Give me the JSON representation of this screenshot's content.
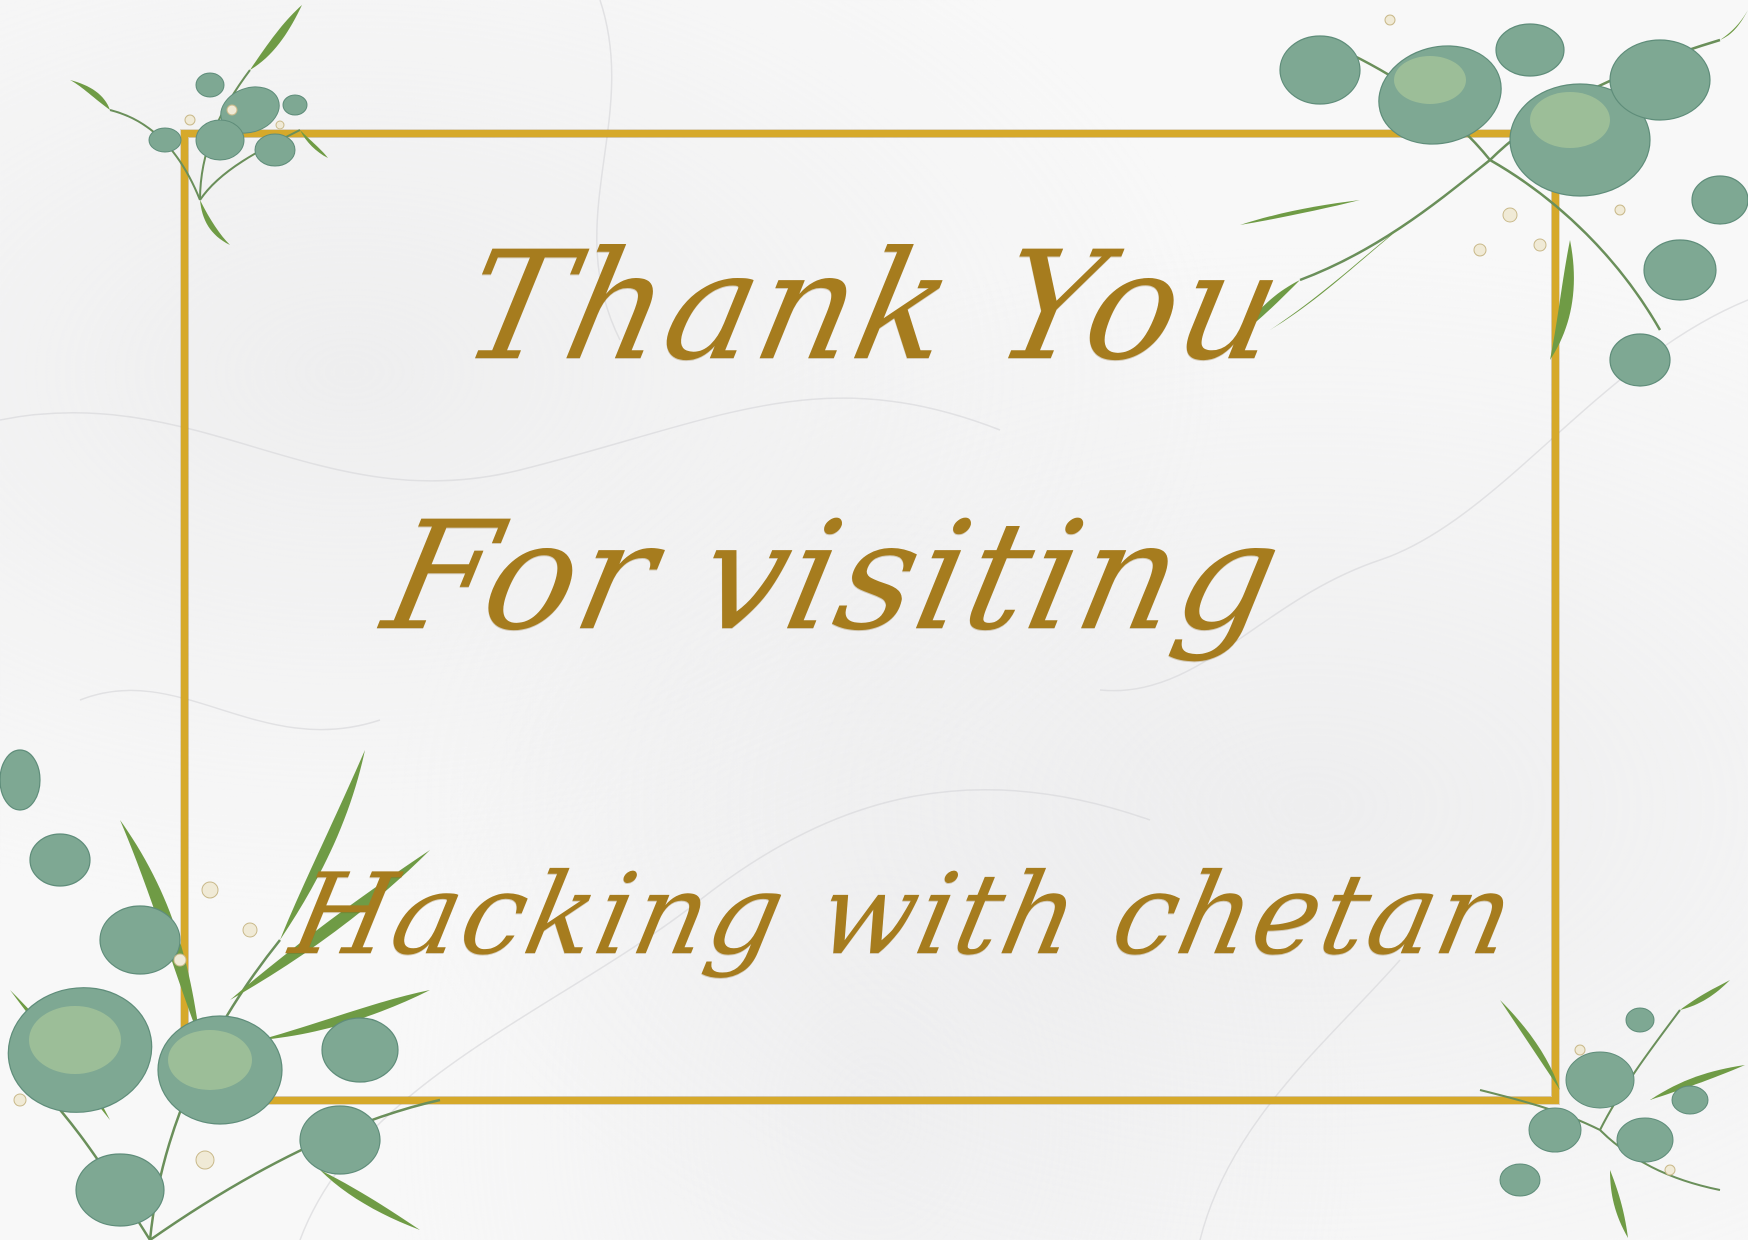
{
  "card": {
    "line1": "Thank You",
    "line2": "For visiting",
    "line3": "Hacking with chetan"
  },
  "colors": {
    "gold_text": "#a67c1e",
    "gold_frame": "#d6a92a",
    "leaf_dark": "#5f8d7a",
    "leaf_mid": "#7ea893",
    "leaf_light": "#a9c79a",
    "leaf_grass": "#6f9b45",
    "background": "#f8f8f8"
  },
  "decorations": {
    "frame": "gold-rectangle-frame",
    "foliage": [
      "eucalyptus-top-left",
      "eucalyptus-top-right",
      "eucalyptus-bottom-left",
      "eucalyptus-bottom-right"
    ]
  }
}
